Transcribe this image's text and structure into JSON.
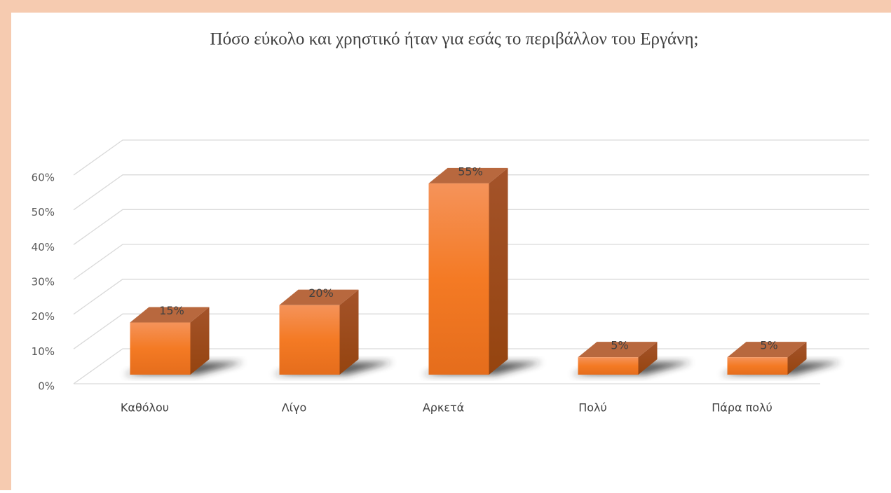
{
  "chart_data": {
    "type": "bar",
    "title": "Πόσο εύκολο και χρηστικό ήταν για εσάς το περιβάλλον του Εργάνη;",
    "categories": [
      "Καθόλου",
      "Λίγο",
      "Αρκετά",
      "Πολύ",
      "Πάρα πολύ"
    ],
    "values": [
      15,
      20,
      55,
      5,
      5
    ],
    "value_labels": [
      "15%",
      "20%",
      "55%",
      "5%",
      "5%"
    ],
    "color": "#f07a2a",
    "ylim": [
      0,
      60
    ],
    "yticks": [
      {
        "value": 0,
        "label": "0%"
      },
      {
        "value": 10,
        "label": "10%"
      },
      {
        "value": 20,
        "label": "20%"
      },
      {
        "value": 30,
        "label": "30%"
      },
      {
        "value": 40,
        "label": "40%"
      },
      {
        "value": 50,
        "label": "50%"
      },
      {
        "value": 60,
        "label": "60%"
      }
    ],
    "grid": true
  }
}
